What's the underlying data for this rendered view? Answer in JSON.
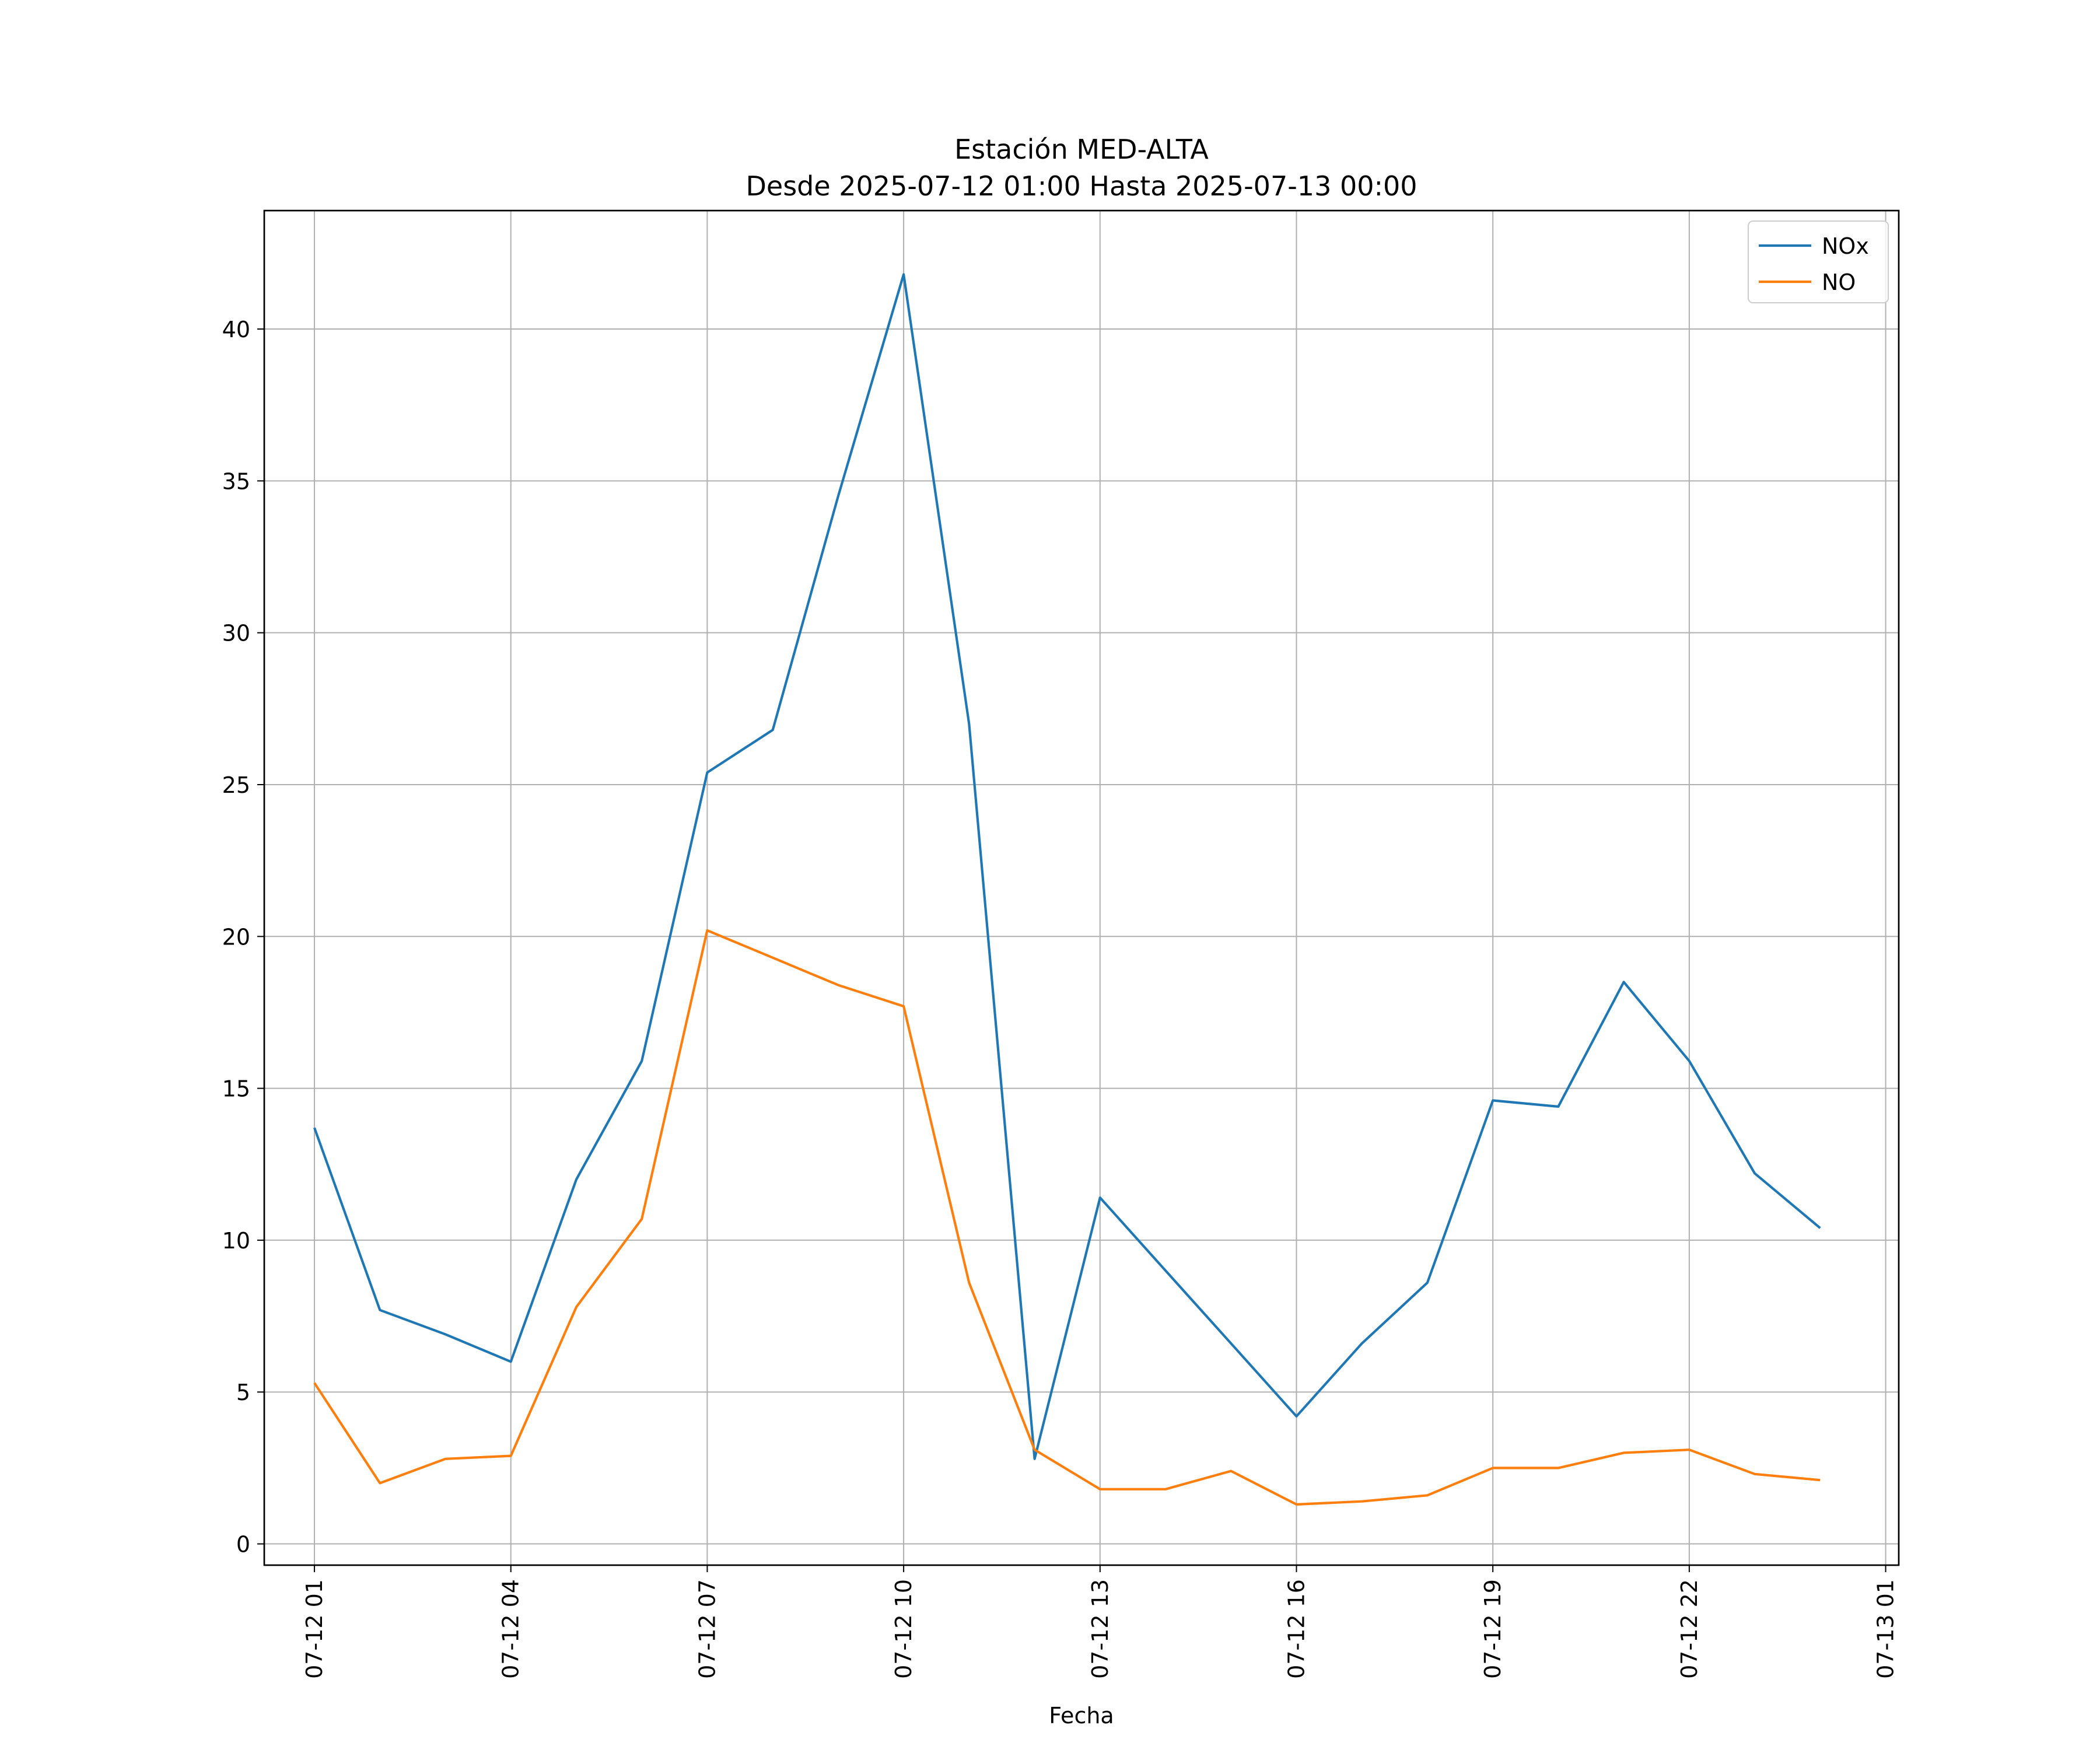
{
  "chart_data": {
    "type": "line",
    "title": "Estación MED-ALTA",
    "subtitle": "Desde 2025-07-12 01:00 Hasta 2025-07-13 00:00",
    "xlabel": "Fecha",
    "ylabel": "",
    "x": [
      "2025-07-12 01:00",
      "2025-07-12 02:00",
      "2025-07-12 03:00",
      "2025-07-12 04:00",
      "2025-07-12 05:00",
      "2025-07-12 06:00",
      "2025-07-12 07:00",
      "2025-07-12 08:00",
      "2025-07-12 09:00",
      "2025-07-12 10:00",
      "2025-07-12 11:00",
      "2025-07-12 12:00",
      "2025-07-12 13:00",
      "2025-07-12 14:00",
      "2025-07-12 15:00",
      "2025-07-12 16:00",
      "2025-07-12 17:00",
      "2025-07-12 18:00",
      "2025-07-12 19:00",
      "2025-07-12 20:00",
      "2025-07-12 21:00",
      "2025-07-12 22:00",
      "2025-07-12 23:00",
      "2025-07-13 00:00"
    ],
    "series": [
      {
        "name": "NOx",
        "color": "#1f77b4",
        "values": [
          13.7,
          7.7,
          6.9,
          6.0,
          12.0,
          15.9,
          25.4,
          26.8,
          34.5,
          41.8,
          27.0,
          2.8,
          11.4,
          9.0,
          6.6,
          4.2,
          6.6,
          8.6,
          14.6,
          14.4,
          18.5,
          15.9,
          12.2,
          10.4
        ]
      },
      {
        "name": "NO",
        "color": "#ff7f0e",
        "values": [
          5.3,
          2.0,
          2.8,
          2.9,
          7.8,
          10.7,
          20.2,
          19.3,
          18.4,
          17.7,
          8.6,
          3.1,
          1.8,
          1.8,
          2.4,
          1.3,
          1.4,
          1.6,
          2.5,
          2.5,
          3.0,
          3.1,
          2.3,
          2.1
        ]
      }
    ],
    "xlim": [
      "2025-07-12 00:14",
      "2025-07-13 01:12"
    ],
    "ylim": [
      -0.7,
      43.9
    ],
    "yticks": [
      0,
      5,
      10,
      15,
      20,
      25,
      30,
      35,
      40
    ],
    "xticks": [
      {
        "at": "2025-07-12 01:00",
        "label": "07-12 01"
      },
      {
        "at": "2025-07-12 04:00",
        "label": "07-12 04"
      },
      {
        "at": "2025-07-12 07:00",
        "label": "07-12 07"
      },
      {
        "at": "2025-07-12 10:00",
        "label": "07-12 10"
      },
      {
        "at": "2025-07-12 13:00",
        "label": "07-12 13"
      },
      {
        "at": "2025-07-12 16:00",
        "label": "07-12 16"
      },
      {
        "at": "2025-07-12 19:00",
        "label": "07-12 19"
      },
      {
        "at": "2025-07-12 22:00",
        "label": "07-12 22"
      },
      {
        "at": "2025-07-13 01:00",
        "label": "07-13 01"
      }
    ],
    "grid": true,
    "legend": "top-right"
  }
}
